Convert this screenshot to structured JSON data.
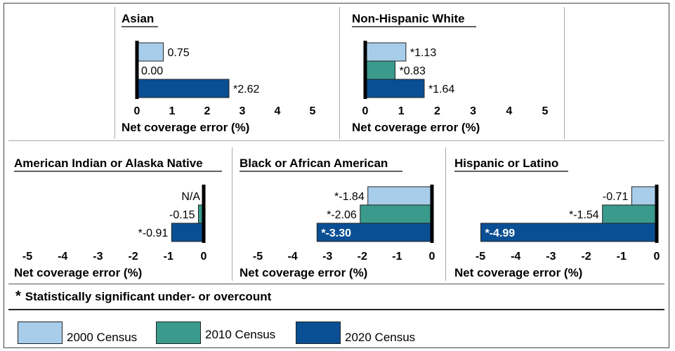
{
  "series_colors": {
    "2000": "#a8cdeb",
    "2010": "#3a9a8c",
    "2020": "#0a4f94"
  },
  "chart_data": [
    {
      "type": "bar",
      "title": "Asian",
      "xlabel": "Net coverage error (%)",
      "xlim": [
        0,
        5
      ],
      "ticks": [
        "0",
        "1",
        "2",
        "3",
        "4",
        "5"
      ],
      "bars": [
        {
          "series": "2000 Census",
          "value": 0.75,
          "label": "0.75"
        },
        {
          "series": "2010 Census",
          "value": 0.0,
          "label": "0.00"
        },
        {
          "series": "2020 Census",
          "value": 2.62,
          "label": "*2.62"
        }
      ]
    },
    {
      "type": "bar",
      "title": "Non-Hispanic White",
      "xlabel": "Net coverage error (%)",
      "xlim": [
        0,
        5
      ],
      "ticks": [
        "0",
        "1",
        "2",
        "3",
        "4",
        "5"
      ],
      "bars": [
        {
          "series": "2000 Census",
          "value": 1.13,
          "label": "*1.13"
        },
        {
          "series": "2010 Census",
          "value": 0.83,
          "label": "*0.83"
        },
        {
          "series": "2020 Census",
          "value": 1.64,
          "label": "*1.64"
        }
      ]
    },
    {
      "type": "bar",
      "title": "American Indian or Alaska Native",
      "xlabel": "Net coverage error (%)",
      "xlim": [
        -5,
        0
      ],
      "ticks": [
        "-5",
        "-4",
        "-3",
        "-2",
        "-1",
        "0"
      ],
      "bars": [
        {
          "series": "2000 Census",
          "value": null,
          "label": "N/A"
        },
        {
          "series": "2010 Census",
          "value": -0.15,
          "label": "-0.15"
        },
        {
          "series": "2020 Census",
          "value": -0.91,
          "label": "*-0.91"
        }
      ]
    },
    {
      "type": "bar",
      "title": "Black or African American",
      "xlabel": "Net coverage error (%)",
      "xlim": [
        -5,
        0
      ],
      "ticks": [
        "-5",
        "-4",
        "-3",
        "-2",
        "-1",
        "0"
      ],
      "bars": [
        {
          "series": "2000 Census",
          "value": -1.84,
          "label": "*-1.84"
        },
        {
          "series": "2010 Census",
          "value": -2.06,
          "label": "*-2.06"
        },
        {
          "series": "2020 Census",
          "value": -3.3,
          "label": "*-3.30"
        }
      ]
    },
    {
      "type": "bar",
      "title": "Hispanic or Latino",
      "xlabel": "Net coverage error (%)",
      "xlim": [
        -5,
        0
      ],
      "ticks": [
        "-5",
        "-4",
        "-3",
        "-2",
        "-1",
        "0"
      ],
      "bars": [
        {
          "series": "2000 Census",
          "value": -0.71,
          "label": "-0.71"
        },
        {
          "series": "2010 Census",
          "value": -1.54,
          "label": "*-1.54"
        },
        {
          "series": "2020 Census",
          "value": -4.99,
          "label": "*-4.99"
        }
      ]
    }
  ],
  "footnote": {
    "symbol": "*",
    "text": "Statistically significant under- or overcount"
  },
  "legend": [
    {
      "label": "2000 Census",
      "key": "2000"
    },
    {
      "label": "2010 Census",
      "key": "2010"
    },
    {
      "label": "2020 Census",
      "key": "2020"
    }
  ]
}
